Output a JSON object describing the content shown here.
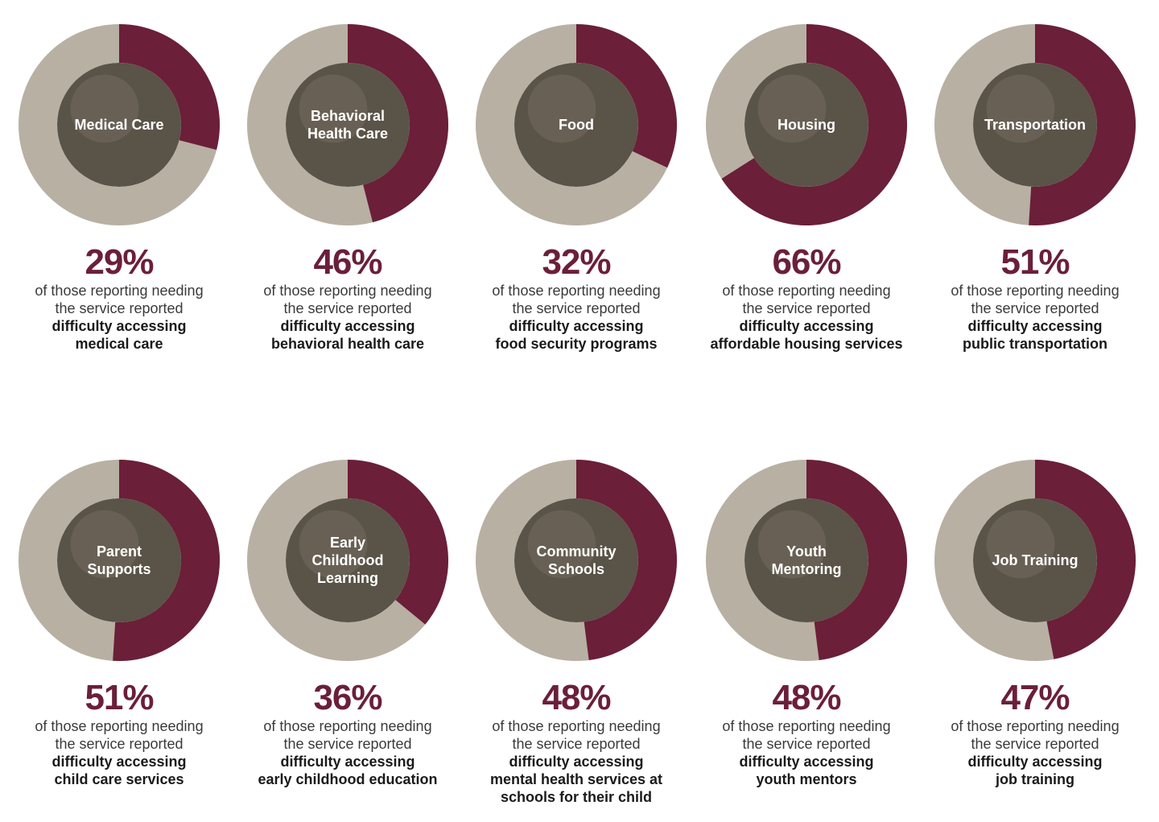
{
  "colors": {
    "accent": "#6b1f38",
    "remainder": "#b8b0a3",
    "photo_tint": "#5a5347"
  },
  "chart_data": [
    {
      "type": "pie",
      "label": [
        "Medical Care"
      ],
      "value": 29,
      "value_text": "29%",
      "caption": [
        "of those reporting needing",
        "the service reported"
      ],
      "caption_bold": [
        "difficulty accessing",
        "medical care"
      ]
    },
    {
      "type": "pie",
      "label": [
        "Behavioral",
        "Health Care"
      ],
      "value": 46,
      "value_text": "46%",
      "caption": [
        "of those reporting needing",
        "the service reported"
      ],
      "caption_bold": [
        "difficulty accessing",
        "behavioral health care"
      ]
    },
    {
      "type": "pie",
      "label": [
        "Food"
      ],
      "value": 32,
      "value_text": "32%",
      "caption": [
        "of those reporting needing",
        "the service reported"
      ],
      "caption_bold": [
        "difficulty accessing",
        "food security programs"
      ]
    },
    {
      "type": "pie",
      "label": [
        "Housing"
      ],
      "value": 66,
      "value_text": "66%",
      "caption": [
        "of those reporting needing",
        "the service reported"
      ],
      "caption_bold": [
        "difficulty accessing",
        "affordable housing services"
      ]
    },
    {
      "type": "pie",
      "label": [
        "Transportation"
      ],
      "value": 51,
      "value_text": "51%",
      "caption": [
        "of those reporting needing",
        "the service reported"
      ],
      "caption_bold": [
        "difficulty accessing",
        "public transportation"
      ]
    },
    {
      "type": "pie",
      "label": [
        "Parent",
        "Supports"
      ],
      "value": 51,
      "value_text": "51%",
      "caption": [
        "of those reporting needing",
        "the service reported"
      ],
      "caption_bold": [
        "difficulty accessing",
        "child care services"
      ]
    },
    {
      "type": "pie",
      "label": [
        "Early",
        "Childhood",
        "Learning"
      ],
      "value": 36,
      "value_text": "36%",
      "caption": [
        "of those reporting needing",
        "the service reported"
      ],
      "caption_bold": [
        "difficulty accessing",
        "early childhood education"
      ]
    },
    {
      "type": "pie",
      "label": [
        "Community",
        "Schools"
      ],
      "value": 48,
      "value_text": "48%",
      "caption": [
        "of those reporting needing",
        "the service reported"
      ],
      "caption_bold": [
        "difficulty accessing",
        "mental health services at",
        "schools for their child"
      ]
    },
    {
      "type": "pie",
      "label": [
        "Youth",
        "Mentoring"
      ],
      "value": 48,
      "value_text": "48%",
      "caption": [
        "of those reporting needing",
        "the service reported"
      ],
      "caption_bold": [
        "difficulty accessing",
        "youth mentors"
      ]
    },
    {
      "type": "pie",
      "label": [
        "Job Training"
      ],
      "value": 47,
      "value_text": "47%",
      "caption": [
        "of those reporting needing",
        "the service reported"
      ],
      "caption_bold": [
        "difficulty accessing",
        "job training"
      ]
    }
  ]
}
